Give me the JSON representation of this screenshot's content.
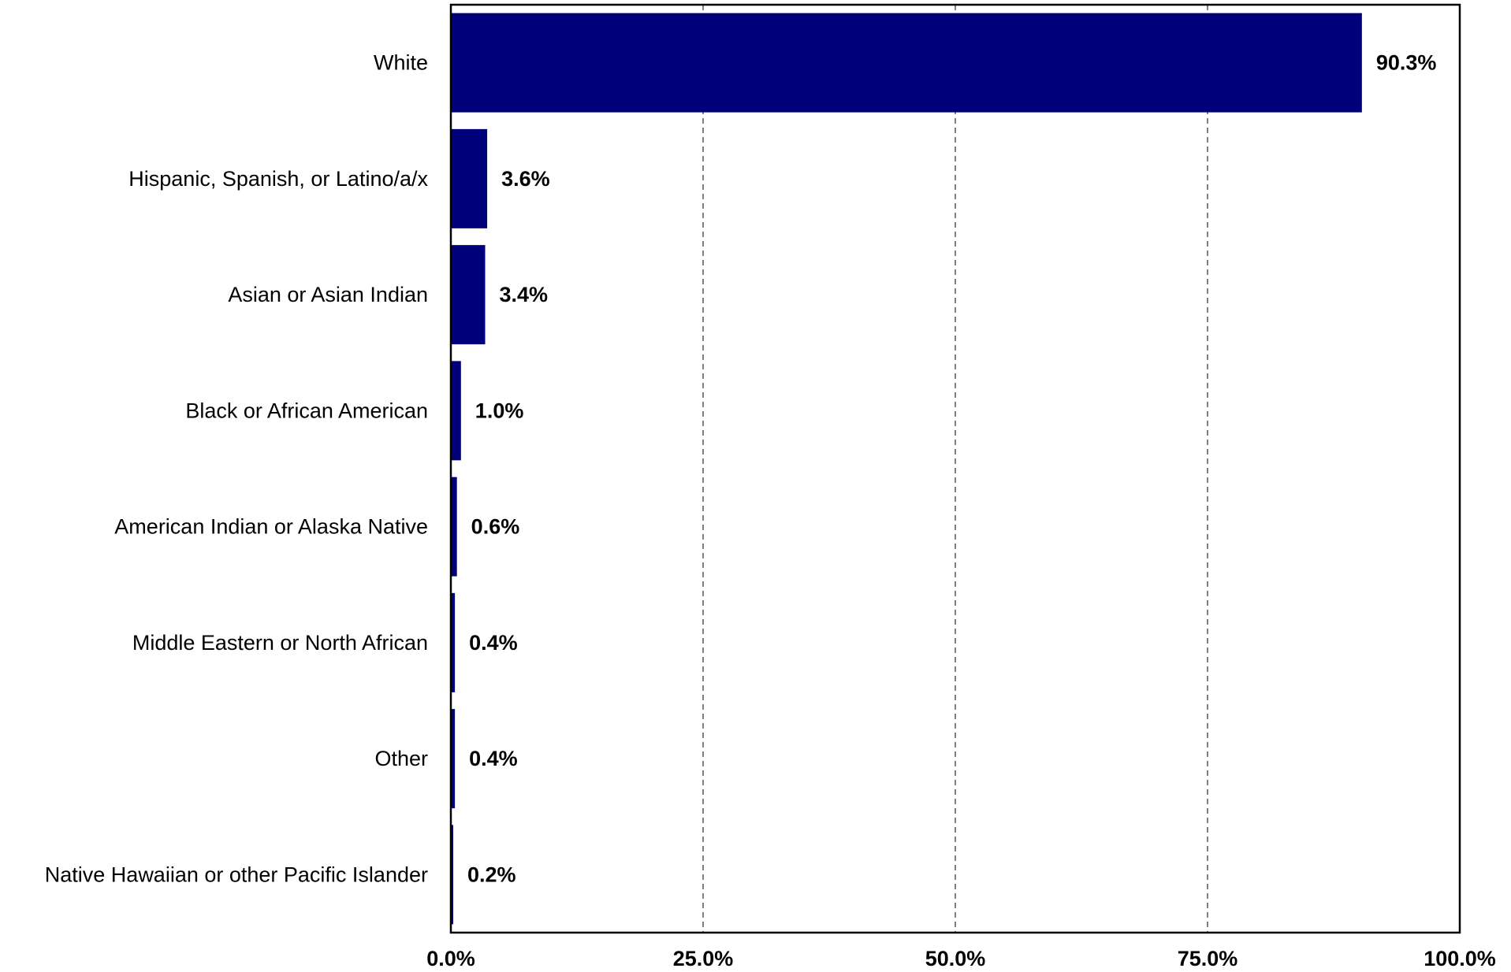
{
  "chart_data": {
    "type": "bar",
    "orientation": "horizontal",
    "title": "",
    "xlabel": "",
    "ylabel": "",
    "categories": [
      "White",
      "Hispanic, Spanish, or Latino/a/x",
      "Asian or Asian Indian",
      "Black or African American",
      "American Indian or Alaska Native",
      "Middle Eastern or North African",
      "Other",
      "Native Hawaiian or other Pacific Islander"
    ],
    "values": [
      90.3,
      3.6,
      3.4,
      1.0,
      0.6,
      0.4,
      0.4,
      0.2
    ],
    "value_labels": [
      "90.3%",
      "3.6%",
      "3.4%",
      "1.0%",
      "0.6%",
      "0.4%",
      "0.4%",
      "0.2%"
    ],
    "xlim": [
      0,
      100
    ],
    "xticks": [
      0,
      25,
      50,
      75,
      100
    ],
    "xtick_labels": [
      "0.0%",
      "25.0%",
      "50.0%",
      "75.0%",
      "100.0%"
    ],
    "grid": "vertical dashed",
    "legend": "none",
    "bar_color": "#00007a"
  }
}
